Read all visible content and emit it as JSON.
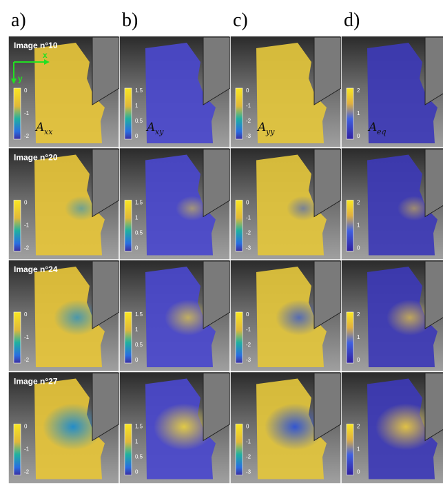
{
  "columns": [
    {
      "label": "a)",
      "symbol": "A",
      "subscript": "xx",
      "ticks": [
        0,
        -1,
        -2
      ]
    },
    {
      "label": "b)",
      "symbol": "A",
      "subscript": "xy",
      "ticks": [
        1.5,
        1,
        0.5,
        0
      ]
    },
    {
      "label": "c)",
      "symbol": "A",
      "subscript": "yy",
      "ticks": [
        0,
        -1,
        -2,
        -3
      ]
    },
    {
      "label": "d)",
      "symbol": "A",
      "subscript": "eq",
      "ticks": [
        2,
        1,
        0
      ]
    }
  ],
  "rows": [
    {
      "label": "Image n°10"
    },
    {
      "label": "Image n°20"
    },
    {
      "label": "Image n°24"
    },
    {
      "label": "Image n°27"
    }
  ],
  "axes": {
    "x": "x",
    "y": "y"
  }
}
